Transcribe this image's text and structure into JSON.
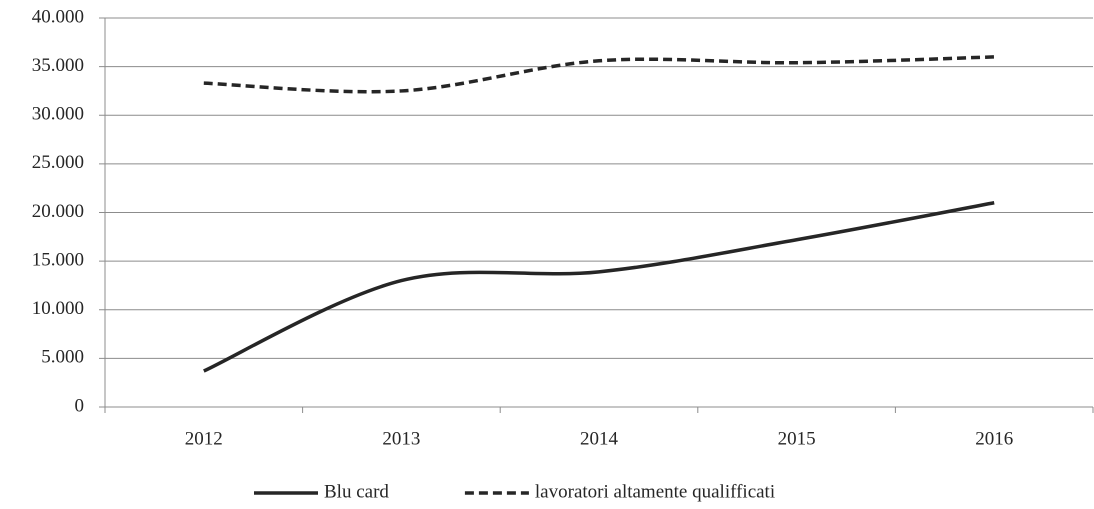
{
  "chart_data": {
    "type": "line",
    "categories": [
      "2012",
      "2013",
      "2014",
      "2015",
      "2016"
    ],
    "series": [
      {
        "name": "Blu card",
        "color": "#262626",
        "dash": "solid",
        "values": [
          3700,
          13000,
          13900,
          17200,
          21000
        ]
      },
      {
        "name": "lavoratori altamente qualifficati",
        "color": "#262626",
        "dash": "dashed",
        "values": [
          33300,
          32500,
          35600,
          35400,
          36000
        ]
      }
    ],
    "ylim": [
      0,
      40000
    ],
    "yticks": [
      0,
      {
        "value": 5000,
        "label": "5.000"
      },
      {
        "value": 10000,
        "label": "10.000"
      },
      {
        "value": 15000,
        "label": "15.000"
      },
      {
        "value": 20000,
        "label": "20.000"
      },
      {
        "value": 25000,
        "label": "25.000"
      },
      {
        "value": 30000,
        "label": "30.000"
      },
      {
        "value": 35000,
        "label": "35.000"
      },
      {
        "value": 40000,
        "label": "40.000"
      }
    ],
    "grid": true,
    "smooth": true,
    "legend": "bottom"
  }
}
